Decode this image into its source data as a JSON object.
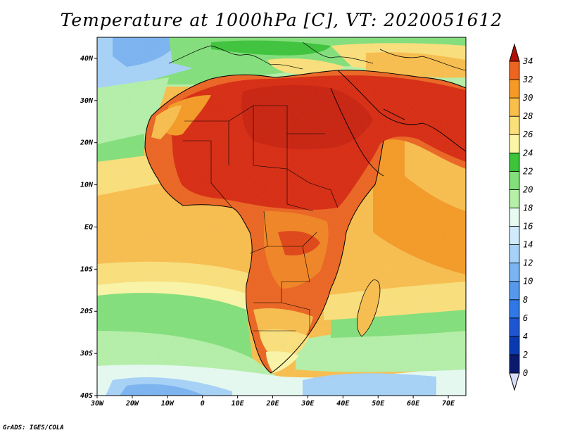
{
  "title": "Temperature at 1000hPa [C], VT: 2020051612",
  "credit": "GrADS: IGES/COLA",
  "map": {
    "lat_labels": [
      "40N",
      "30N",
      "20N",
      "10N",
      "EQ",
      "10S",
      "20S",
      "30S",
      "40S"
    ],
    "lat_values": [
      40,
      30,
      20,
      10,
      0,
      -10,
      -20,
      -30,
      -40
    ],
    "lon_labels": [
      "30W",
      "20W",
      "10W",
      "0",
      "10E",
      "20E",
      "30E",
      "40E",
      "50E",
      "60E",
      "70E"
    ],
    "lon_values": [
      -30,
      -20,
      -10,
      0,
      10,
      20,
      30,
      40,
      50,
      60,
      70
    ],
    "lat_range": [
      -40,
      45
    ],
    "lon_range": [
      -30,
      75
    ]
  },
  "colorbar": {
    "labels": [
      "0",
      "2",
      "4",
      "6",
      "8",
      "10",
      "12",
      "14",
      "16",
      "18",
      "20",
      "22",
      "24",
      "26",
      "28",
      "30",
      "32",
      "34"
    ],
    "colors": [
      "#0a1a6e",
      "#0a3ab0",
      "#1e56d2",
      "#2f78e6",
      "#5598ec",
      "#7ab4f2",
      "#a6d2f8",
      "#d0ecfc",
      "#e6fbf2",
      "#b4f0a8",
      "#82e07a",
      "#3cc43a",
      "#fbf6a6",
      "#fbe07a",
      "#f9be4c",
      "#f59a24",
      "#ec6420",
      "#d82a10",
      "#b01008"
    ]
  }
}
